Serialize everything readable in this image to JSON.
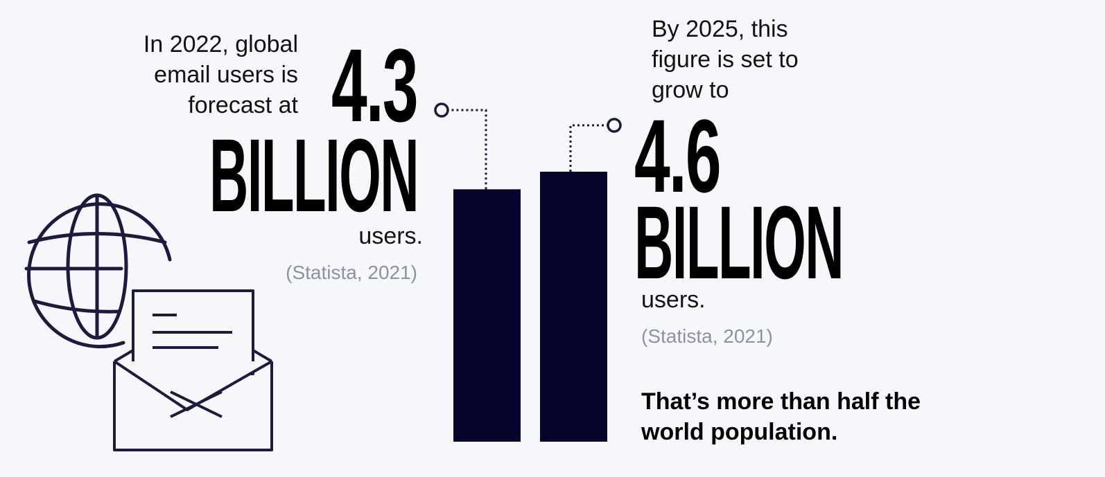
{
  "intro_left": [
    "In 2022, global",
    "email users is",
    "forecast at"
  ],
  "intro_right": [
    "By 2025, this",
    "figure is set to",
    "grow to"
  ],
  "closing": [
    "That’s more than half the",
    "world population."
  ],
  "colors": {
    "background": "#f6f7fa",
    "bar": "#05042a",
    "text": "#0a0a12",
    "source": "#8a93a3",
    "line": "#1a1a3a"
  },
  "icons": [
    "globe-icon",
    "envelope-letter-icon"
  ],
  "chart_data": {
    "type": "bar",
    "categories": [
      "2022",
      "2025"
    ],
    "values": [
      4.3,
      4.6
    ],
    "value_labels": [
      "4.3",
      "4.6"
    ],
    "unit_labels": [
      "BILLION",
      "BILLION"
    ],
    "suffix_labels": [
      "users.",
      "users."
    ],
    "sources": [
      "(Statista, 2021)",
      "(Statista, 2021)"
    ]
  }
}
